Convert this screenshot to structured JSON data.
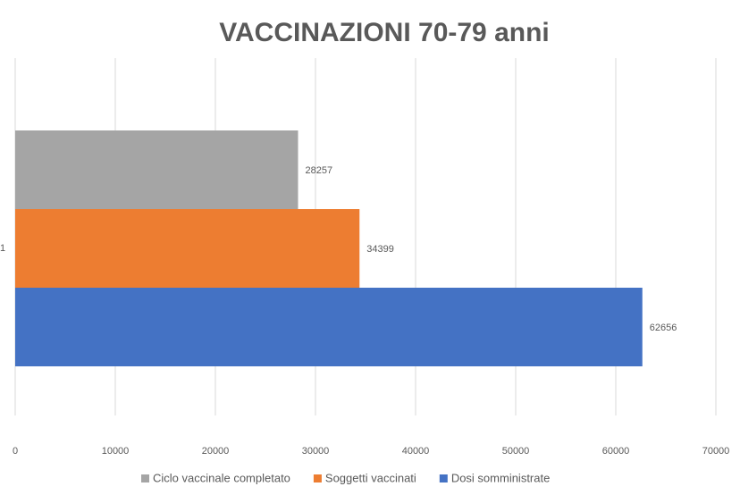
{
  "chart_data": {
    "type": "bar",
    "orientation": "horizontal",
    "title": "VACCINAZIONI 70-79 anni",
    "categories": [
      "1"
    ],
    "series": [
      {
        "name": "Ciclo vaccinale completato",
        "color": "#a5a5a5",
        "values": [
          28257
        ]
      },
      {
        "name": "Soggetti vaccinati",
        "color": "#ed7d31",
        "values": [
          34399
        ]
      },
      {
        "name": "Dosi somministrate",
        "color": "#4472c4",
        "values": [
          62656
        ]
      }
    ],
    "xlim": [
      0,
      70000
    ],
    "xticks": [
      0,
      10000,
      20000,
      30000,
      40000,
      50000,
      60000,
      70000
    ],
    "grid": true,
    "legend": "bottom"
  }
}
